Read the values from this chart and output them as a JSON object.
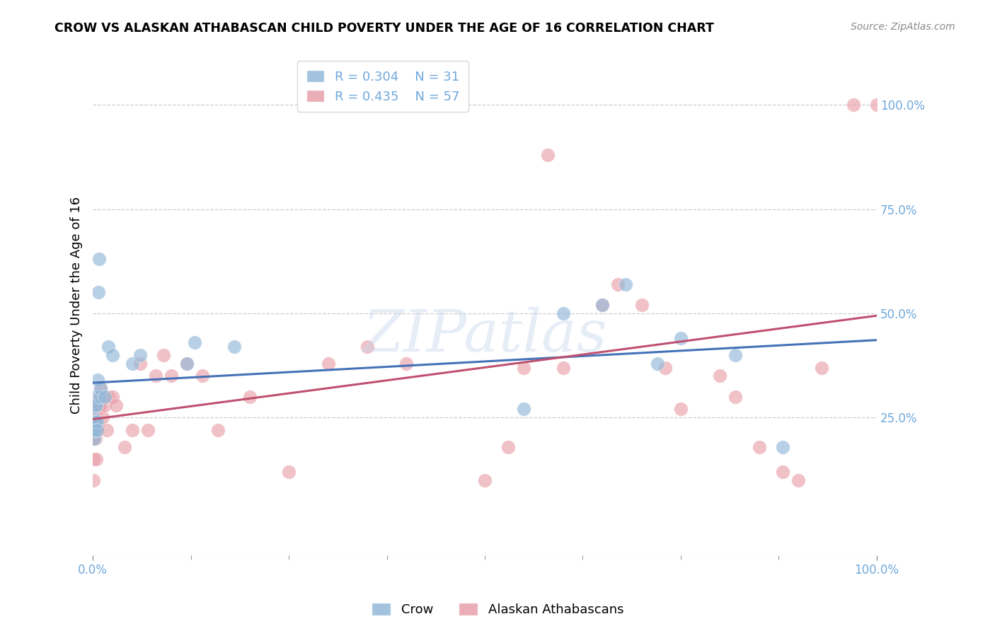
{
  "title": "CROW VS ALASKAN ATHABASCAN CHILD POVERTY UNDER THE AGE OF 16 CORRELATION CHART",
  "source": "Source: ZipAtlas.com",
  "ylabel": "Child Poverty Under the Age of 16",
  "crow_R": 0.304,
  "crow_N": 31,
  "athabascan_R": 0.435,
  "athabascan_N": 57,
  "crow_color": "#92b8d9",
  "athabascan_color": "#e8a0aa",
  "crow_line_color": "#4472b8",
  "athabascan_line_color": "#c05070",
  "legend_label_crow": "Crow",
  "legend_label_athabascan": "Alaskan Athabascans",
  "background_color": "#ffffff",
  "grid_color": "#cccccc",
  "axis_color": "#6fa8dc",
  "watermark_text": "ZIPatlas",
  "crow_x": [
    0.001,
    0.001,
    0.002,
    0.002,
    0.003,
    0.003,
    0.003,
    0.004,
    0.005,
    0.005,
    0.006,
    0.007,
    0.008,
    0.009,
    0.01,
    0.015,
    0.02,
    0.025,
    0.05,
    0.06,
    0.12,
    0.13,
    0.18,
    0.55,
    0.6,
    0.65,
    0.68,
    0.72,
    0.75,
    0.82,
    0.88
  ],
  "crow_y": [
    0.22,
    0.25,
    0.2,
    0.22,
    0.28,
    0.3,
    0.24,
    0.28,
    0.24,
    0.22,
    0.34,
    0.55,
    0.63,
    0.3,
    0.32,
    0.3,
    0.42,
    0.4,
    0.38,
    0.4,
    0.38,
    0.43,
    0.42,
    0.27,
    0.5,
    0.52,
    0.57,
    0.38,
    0.44,
    0.4,
    0.18
  ],
  "athabascan_x": [
    0.001,
    0.001,
    0.001,
    0.002,
    0.002,
    0.003,
    0.003,
    0.004,
    0.004,
    0.005,
    0.005,
    0.006,
    0.006,
    0.007,
    0.007,
    0.008,
    0.009,
    0.01,
    0.012,
    0.015,
    0.018,
    0.02,
    0.025,
    0.03,
    0.04,
    0.05,
    0.06,
    0.07,
    0.08,
    0.09,
    0.1,
    0.12,
    0.14,
    0.16,
    0.2,
    0.25,
    0.3,
    0.35,
    0.4,
    0.5,
    0.53,
    0.55,
    0.6,
    0.65,
    0.67,
    0.7,
    0.73,
    0.75,
    0.8,
    0.82,
    0.85,
    0.88,
    0.9,
    0.93,
    0.97,
    1.0,
    0.58
  ],
  "athabascan_y": [
    0.2,
    0.15,
    0.1,
    0.25,
    0.22,
    0.24,
    0.2,
    0.22,
    0.15,
    0.28,
    0.23,
    0.27,
    0.22,
    0.28,
    0.24,
    0.3,
    0.28,
    0.32,
    0.25,
    0.28,
    0.22,
    0.3,
    0.3,
    0.28,
    0.18,
    0.22,
    0.38,
    0.22,
    0.35,
    0.4,
    0.35,
    0.38,
    0.35,
    0.22,
    0.3,
    0.12,
    0.38,
    0.42,
    0.38,
    0.1,
    0.18,
    0.37,
    0.37,
    0.52,
    0.57,
    0.52,
    0.37,
    0.27,
    0.35,
    0.3,
    0.18,
    0.12,
    0.1,
    0.37,
    1.0,
    1.0,
    0.88
  ],
  "y_ticks": [
    0.25,
    0.5,
    0.75,
    1.0
  ],
  "x_ticks_labeled": [
    0.0,
    1.0
  ],
  "x_ticks_minor": [
    0.125,
    0.25,
    0.375,
    0.5,
    0.625,
    0.75,
    0.875
  ]
}
